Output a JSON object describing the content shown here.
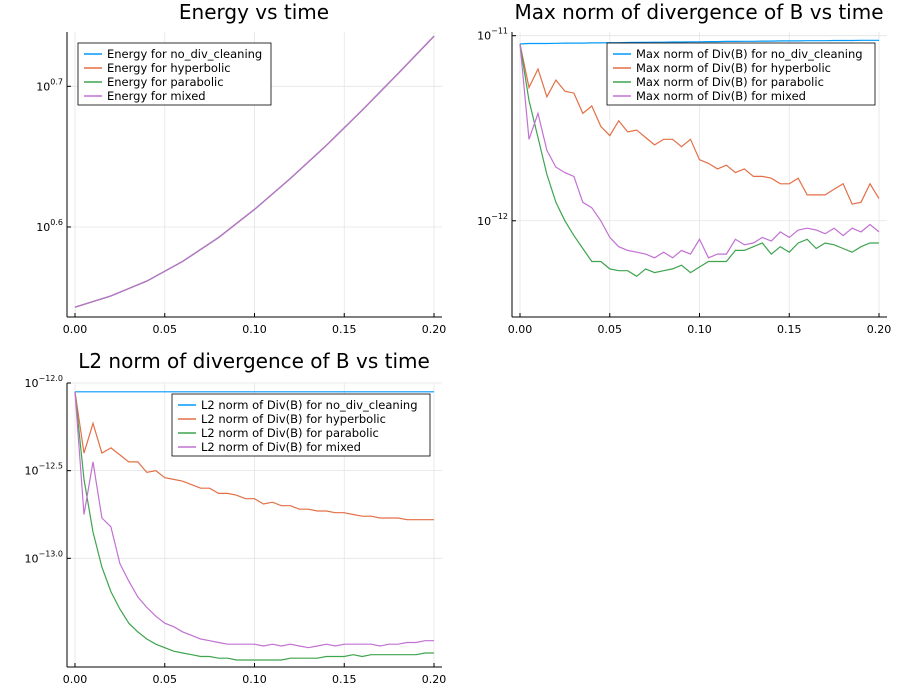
{
  "chart_data": [
    {
      "type": "line",
      "title": "Energy vs time",
      "xlabel": "",
      "ylabel": "",
      "y_scale": "log10",
      "xlim": [
        0,
        0.2
      ],
      "x_ticks": [
        "0.00",
        "0.05",
        "0.10",
        "0.15",
        "0.20"
      ],
      "y_ticks": [
        {
          "base": "10",
          "exp": "0.6",
          "value": 0.6
        },
        {
          "base": "10",
          "exp": "0.7",
          "value": 0.7
        }
      ],
      "grid": true,
      "legend": "top-left",
      "x": [
        0,
        0.02,
        0.04,
        0.06,
        0.08,
        0.1,
        0.12,
        0.14,
        0.16,
        0.18,
        0.2
      ],
      "series": [
        {
          "name": "Energy for no_div_cleaning",
          "color": "#009AFA",
          "y_exp": [
            0.543,
            0.551,
            0.5615,
            0.5755,
            0.5925,
            0.6125,
            0.6345,
            0.658,
            0.683,
            0.709,
            0.7356
          ]
        },
        {
          "name": "Energy for hyperbolic",
          "color": "#E36F47",
          "y_exp": [
            0.543,
            0.551,
            0.5615,
            0.5755,
            0.5925,
            0.6125,
            0.6345,
            0.658,
            0.683,
            0.709,
            0.7356
          ]
        },
        {
          "name": "Energy for parabolic",
          "color": "#3EA44E",
          "y_exp": [
            0.543,
            0.551,
            0.5615,
            0.5755,
            0.5925,
            0.6125,
            0.6345,
            0.658,
            0.683,
            0.709,
            0.7356
          ]
        },
        {
          "name": "Energy for mixed",
          "color": "#C271D2",
          "y_exp": [
            0.543,
            0.551,
            0.5615,
            0.5755,
            0.5925,
            0.6125,
            0.6345,
            0.658,
            0.683,
            0.709,
            0.7356
          ]
        }
      ]
    },
    {
      "type": "line",
      "title": "Max norm of divergence of B vs time",
      "xlabel": "",
      "ylabel": "",
      "y_scale": "log10",
      "xlim": [
        0,
        0.2
      ],
      "x_ticks": [
        "0.00",
        "0.05",
        "0.10",
        "0.15",
        "0.20"
      ],
      "y_ticks": [
        {
          "base": "10",
          "exp": "−12",
          "value": -12
        },
        {
          "base": "10",
          "exp": "−11",
          "value": -11
        }
      ],
      "grid": true,
      "legend": "top-right",
      "x": [
        0,
        0.005,
        0.01,
        0.015,
        0.02,
        0.025,
        0.03,
        0.035,
        0.04,
        0.045,
        0.05,
        0.055,
        0.06,
        0.065,
        0.07,
        0.075,
        0.08,
        0.085,
        0.09,
        0.095,
        0.1,
        0.105,
        0.11,
        0.115,
        0.12,
        0.125,
        0.13,
        0.135,
        0.14,
        0.145,
        0.15,
        0.155,
        0.16,
        0.165,
        0.17,
        0.175,
        0.18,
        0.185,
        0.19,
        0.195,
        0.2
      ],
      "series": [
        {
          "name": "Max norm of Div(B) for no_div_cleaning",
          "color": "#009AFA",
          "y_exp": [
            -11.045,
            -11.042,
            -11.042,
            -11.042,
            -11.041,
            -11.04,
            -11.04,
            -11.04,
            -11.039,
            -11.039,
            -11.038,
            -11.038,
            -11.037,
            -11.036,
            -11.036,
            -11.035,
            -11.035,
            -11.034,
            -11.034,
            -11.033,
            -11.033,
            -11.032,
            -11.032,
            -11.031,
            -11.031,
            -11.03,
            -11.03,
            -11.029,
            -11.029,
            -11.028,
            -11.028,
            -11.028,
            -11.027,
            -11.027,
            -11.027,
            -11.026,
            -11.026,
            -11.026,
            -11.025,
            -11.025,
            -11.025
          ]
        },
        {
          "name": "Max norm of Div(B) for hyperbolic",
          "color": "#E36F47",
          "y_exp": [
            -11.045,
            -11.28,
            -11.18,
            -11.33,
            -11.24,
            -11.3,
            -11.31,
            -11.42,
            -11.38,
            -11.49,
            -11.54,
            -11.46,
            -11.52,
            -11.51,
            -11.55,
            -11.59,
            -11.56,
            -11.56,
            -11.6,
            -11.56,
            -11.67,
            -11.69,
            -11.72,
            -11.7,
            -11.74,
            -11.72,
            -11.76,
            -11.76,
            -11.77,
            -11.8,
            -11.8,
            -11.77,
            -11.86,
            -11.86,
            -11.86,
            -11.83,
            -11.8,
            -11.91,
            -11.9,
            -11.8,
            -11.88
          ]
        },
        {
          "name": "Max norm of Div(B) for parabolic",
          "color": "#3EA44E",
          "y_exp": [
            -11.045,
            -11.35,
            -11.55,
            -11.75,
            -11.9,
            -12.0,
            -12.08,
            -12.15,
            -12.22,
            -12.22,
            -12.26,
            -12.27,
            -12.27,
            -12.3,
            -12.26,
            -12.28,
            -12.27,
            -12.26,
            -12.24,
            -12.28,
            -12.25,
            -12.22,
            -12.22,
            -12.22,
            -12.16,
            -12.16,
            -12.14,
            -12.12,
            -12.18,
            -12.14,
            -12.17,
            -12.12,
            -12.1,
            -12.15,
            -12.12,
            -12.13,
            -12.15,
            -12.17,
            -12.14,
            -12.12,
            -12.12
          ]
        },
        {
          "name": "Max norm of Div(B) for mixed",
          "color": "#C271D2",
          "y_exp": [
            -11.045,
            -11.56,
            -11.42,
            -11.62,
            -11.71,
            -11.74,
            -11.76,
            -11.9,
            -11.93,
            -12.0,
            -12.09,
            -12.14,
            -12.16,
            -12.17,
            -12.18,
            -12.2,
            -12.17,
            -12.2,
            -12.16,
            -12.18,
            -12.1,
            -12.2,
            -12.18,
            -12.18,
            -12.1,
            -12.13,
            -12.12,
            -12.09,
            -12.11,
            -12.06,
            -12.09,
            -12.05,
            -12.04,
            -12.05,
            -12.07,
            -12.04,
            -12.08,
            -12.04,
            -12.06,
            -12.02,
            -12.06
          ]
        }
      ]
    },
    {
      "type": "line",
      "title": "L2 norm of divergence of B vs time",
      "xlabel": "",
      "ylabel": "",
      "y_scale": "log10",
      "xlim": [
        0,
        0.2
      ],
      "x_ticks": [
        "0.00",
        "0.05",
        "0.10",
        "0.15",
        "0.20"
      ],
      "y_ticks": [
        {
          "base": "10",
          "exp": "−13.0",
          "value": -13.0
        },
        {
          "base": "10",
          "exp": "−12.5",
          "value": -12.5
        },
        {
          "base": "10",
          "exp": "−12.0",
          "value": -12.0
        }
      ],
      "grid": true,
      "legend": "top-right",
      "x": [
        0,
        0.005,
        0.01,
        0.015,
        0.02,
        0.025,
        0.03,
        0.035,
        0.04,
        0.045,
        0.05,
        0.055,
        0.06,
        0.065,
        0.07,
        0.075,
        0.08,
        0.085,
        0.09,
        0.095,
        0.1,
        0.105,
        0.11,
        0.115,
        0.12,
        0.125,
        0.13,
        0.135,
        0.14,
        0.145,
        0.15,
        0.155,
        0.16,
        0.165,
        0.17,
        0.175,
        0.18,
        0.185,
        0.19,
        0.195,
        0.2
      ],
      "series": [
        {
          "name": "L2 norm of Div(B) for no_div_cleaning",
          "color": "#009AFA",
          "y_exp": [
            -12.05,
            -12.05,
            -12.05,
            -12.05,
            -12.05,
            -12.05,
            -12.05,
            -12.05,
            -12.05,
            -12.05,
            -12.05,
            -12.05,
            -12.05,
            -12.05,
            -12.05,
            -12.05,
            -12.05,
            -12.05,
            -12.05,
            -12.05,
            -12.05,
            -12.05,
            -12.05,
            -12.05,
            -12.05,
            -12.05,
            -12.05,
            -12.05,
            -12.05,
            -12.05,
            -12.05,
            -12.05,
            -12.05,
            -12.05,
            -12.05,
            -12.05,
            -12.05,
            -12.05,
            -12.05,
            -12.05,
            -12.05
          ]
        },
        {
          "name": "L2 norm of Div(B) for hyperbolic",
          "color": "#E36F47",
          "y_exp": [
            -12.05,
            -12.4,
            -12.23,
            -12.4,
            -12.37,
            -12.41,
            -12.45,
            -12.45,
            -12.51,
            -12.5,
            -12.54,
            -12.55,
            -12.56,
            -12.58,
            -12.6,
            -12.6,
            -12.63,
            -12.63,
            -12.64,
            -12.66,
            -12.66,
            -12.69,
            -12.68,
            -12.7,
            -12.7,
            -12.72,
            -12.72,
            -12.73,
            -12.73,
            -12.74,
            -12.74,
            -12.75,
            -12.76,
            -12.76,
            -12.77,
            -12.77,
            -12.77,
            -12.78,
            -12.78,
            -12.78,
            -12.78
          ]
        },
        {
          "name": "L2 norm of Div(B) for parabolic",
          "color": "#3EA44E",
          "y_exp": [
            -12.05,
            -12.55,
            -12.85,
            -13.05,
            -13.19,
            -13.29,
            -13.37,
            -13.42,
            -13.46,
            -13.49,
            -13.51,
            -13.53,
            -13.54,
            -13.55,
            -13.56,
            -13.56,
            -13.57,
            -13.57,
            -13.58,
            -13.58,
            -13.58,
            -13.58,
            -13.58,
            -13.58,
            -13.57,
            -13.57,
            -13.57,
            -13.57,
            -13.56,
            -13.56,
            -13.56,
            -13.55,
            -13.56,
            -13.55,
            -13.55,
            -13.55,
            -13.55,
            -13.55,
            -13.55,
            -13.54,
            -13.54
          ]
        },
        {
          "name": "L2 norm of Div(B) for mixed",
          "color": "#C271D2",
          "y_exp": [
            -12.05,
            -12.75,
            -12.45,
            -12.77,
            -12.82,
            -13.03,
            -13.13,
            -13.22,
            -13.28,
            -13.33,
            -13.37,
            -13.39,
            -13.42,
            -13.44,
            -13.46,
            -13.47,
            -13.48,
            -13.49,
            -13.49,
            -13.49,
            -13.49,
            -13.5,
            -13.49,
            -13.5,
            -13.49,
            -13.5,
            -13.51,
            -13.5,
            -13.49,
            -13.5,
            -13.49,
            -13.49,
            -13.49,
            -13.49,
            -13.5,
            -13.49,
            -13.49,
            -13.48,
            -13.48,
            -13.47,
            -13.47
          ]
        }
      ]
    }
  ]
}
